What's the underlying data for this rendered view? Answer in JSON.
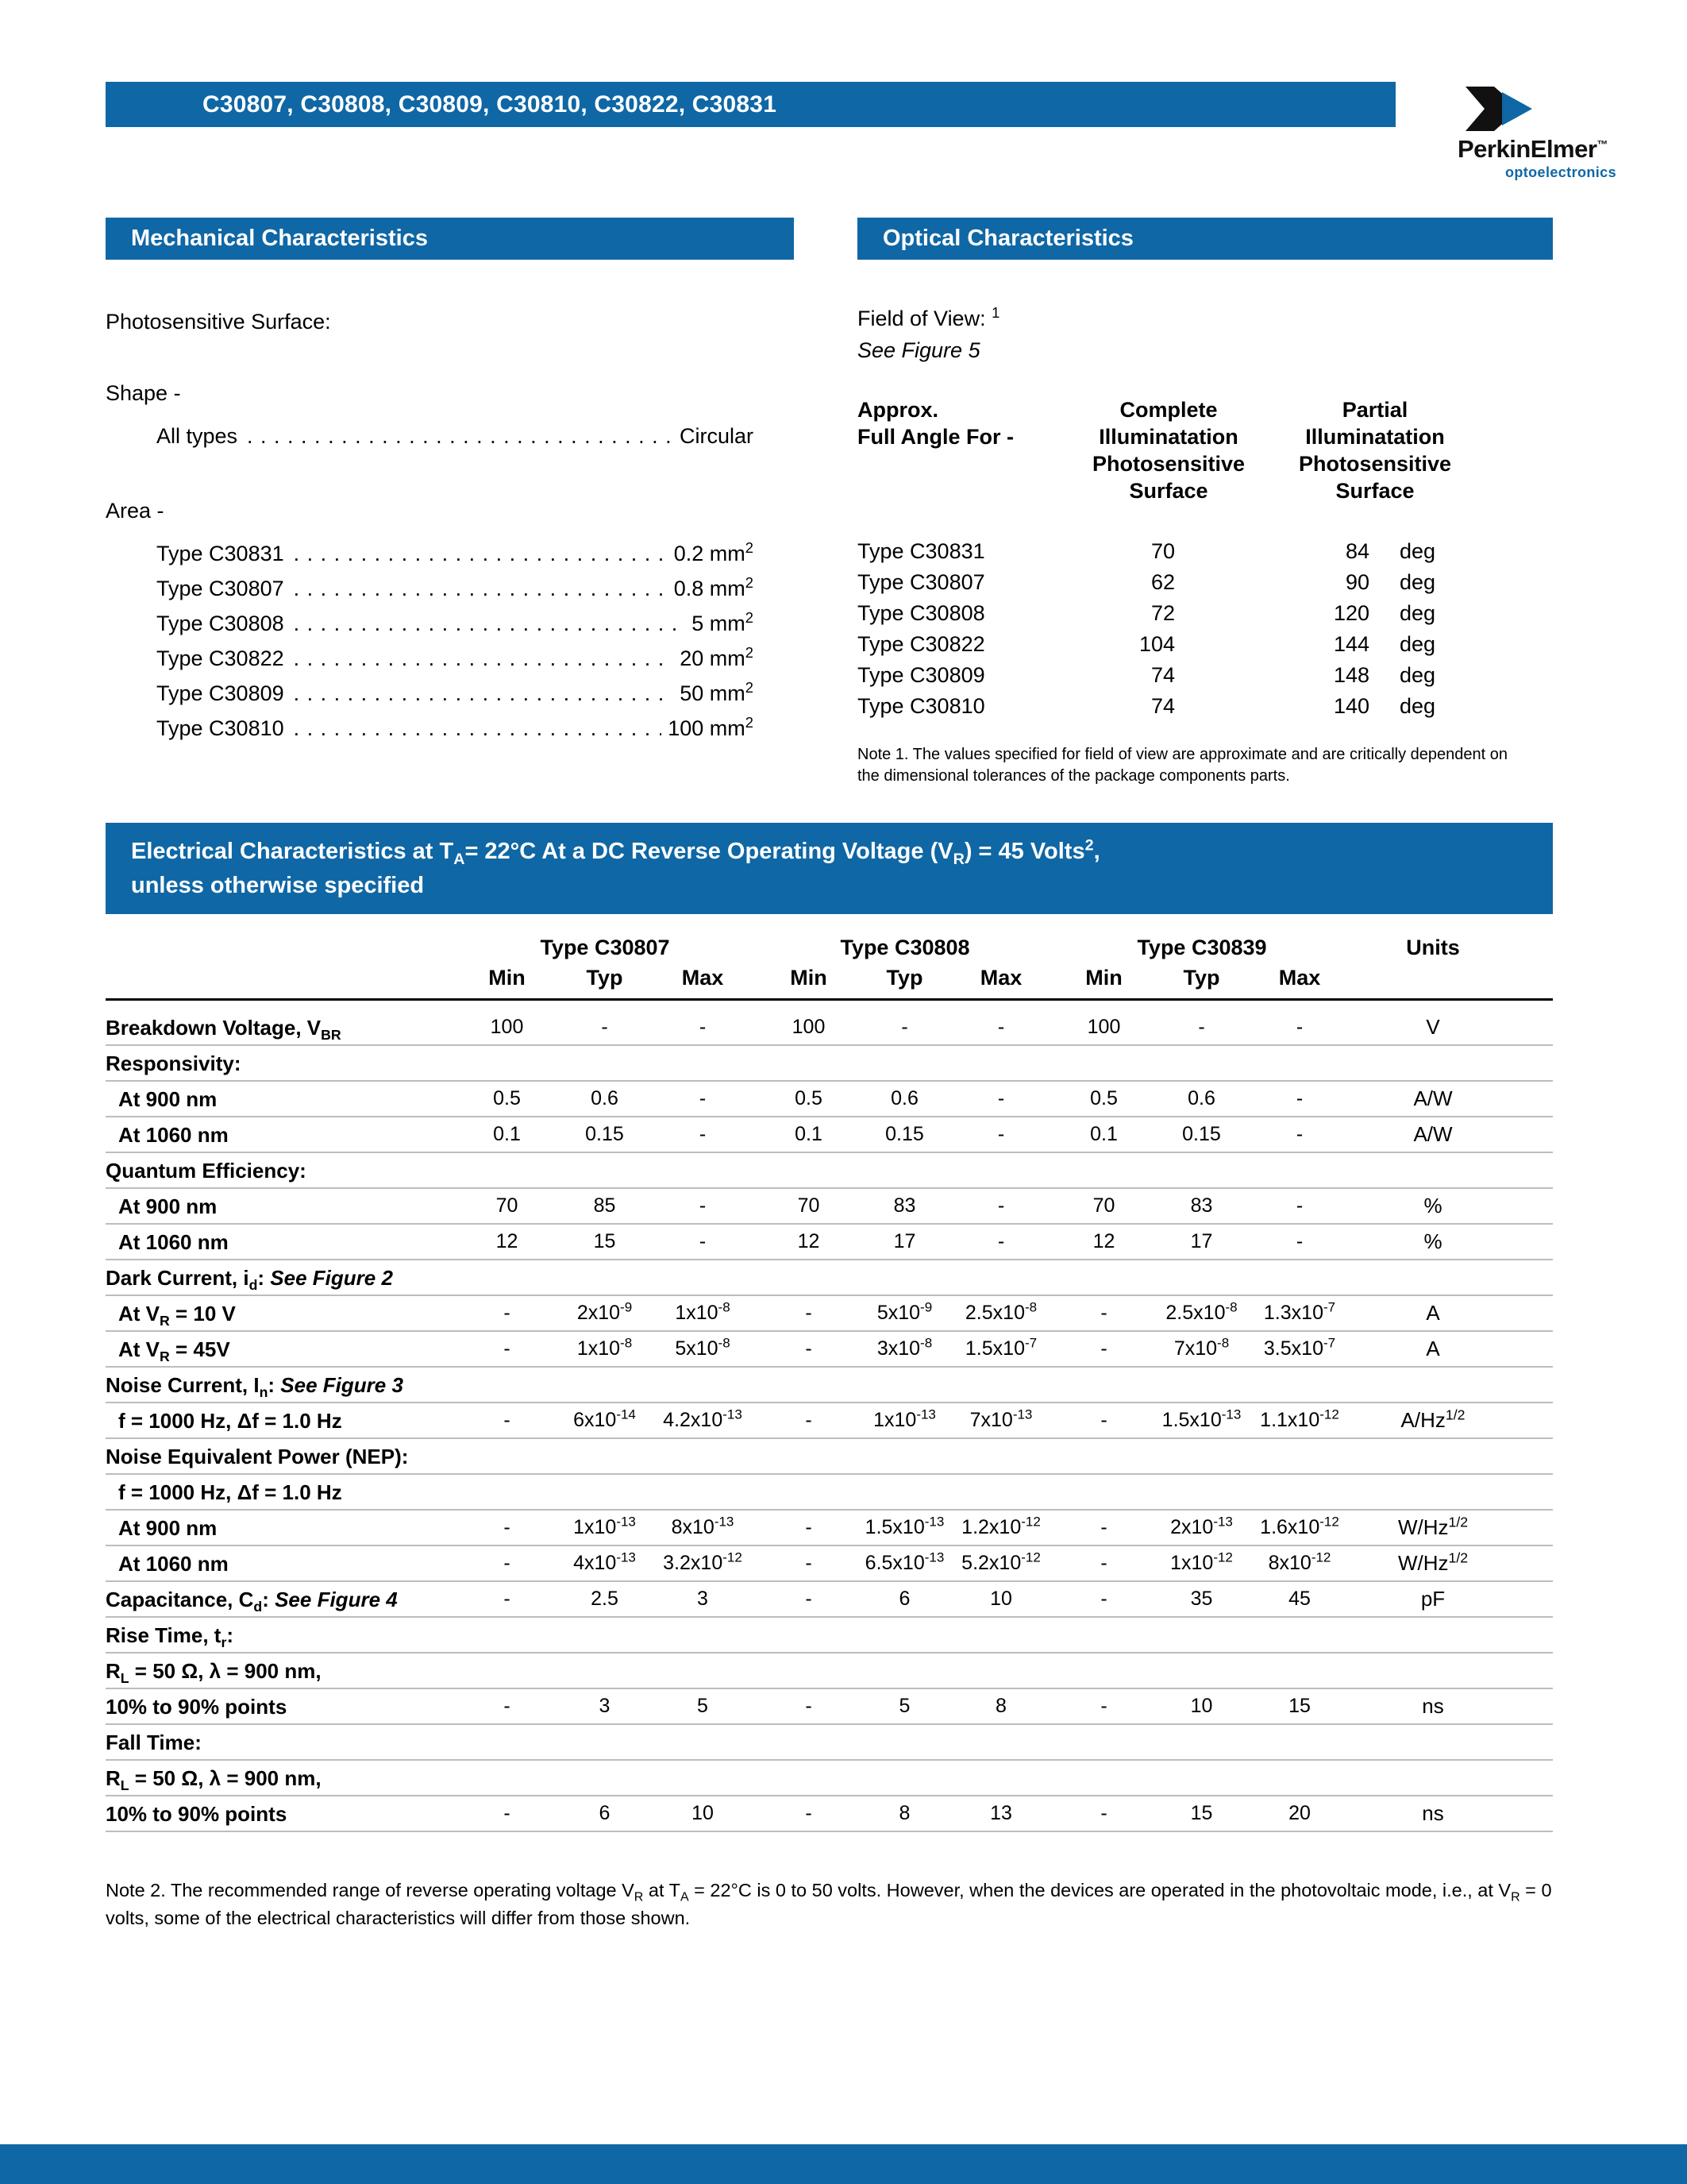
{
  "colors": {
    "brand_blue": "#0f67a5"
  },
  "page": {
    "title": "C30807, C30808, C30809, C30810, C30822, C30831",
    "logo": {
      "brand": "PerkinElmer",
      "tm": "™",
      "tagline": "optoelectronics"
    }
  },
  "mechanical": {
    "header": "Mechanical Characteristics",
    "surface_label": "Photosensitive Surface:",
    "shape_label": "Shape -",
    "shape_rows": [
      {
        "label": "All types",
        "value": "Circular"
      }
    ],
    "area_label": "Area -",
    "area_rows": [
      {
        "label": "Type C30831",
        "value": "0.2 mm<sup>2</sup>"
      },
      {
        "label": "Type C30807",
        "value": "0.8 mm<sup>2</sup>"
      },
      {
        "label": "Type C30808",
        "value": "5 mm<sup>2</sup>"
      },
      {
        "label": "Type C30822",
        "value": "20 mm<sup>2</sup>"
      },
      {
        "label": "Type C30809",
        "value": "50 mm<sup>2</sup>"
      },
      {
        "label": "Type C30810",
        "value": "100 mm<sup>2</sup>"
      }
    ],
    "leader": ". . . . . . . . . . . . . . . . . . . . . . . . . . . . . . . . . . . . . . . . . . . . . . . . . . . . . . . ."
  },
  "optical": {
    "header": "Optical Characteristics",
    "fov_label": "Field of View: <sup>1</sup>",
    "see_figure": "See Figure 5",
    "col0_header": "Approx.<br>Full Angle For -",
    "col1_header": "Complete<br>Illuminatation<br>Photosensitive<br>Surface",
    "col2_header": "Partial<br>Illuminatation<br>Photosensitive<br>Surface",
    "rows": [
      {
        "type": "Type C30831",
        "complete": "70",
        "partial": "84",
        "unit": "deg"
      },
      {
        "type": "Type C30807",
        "complete": "62",
        "partial": "90",
        "unit": "deg"
      },
      {
        "type": "Type C30808",
        "complete": "72",
        "partial": "120",
        "unit": "deg"
      },
      {
        "type": "Type C30822",
        "complete": "104",
        "partial": "144",
        "unit": "deg"
      },
      {
        "type": "Type C30809",
        "complete": "74",
        "partial": "148",
        "unit": "deg"
      },
      {
        "type": "Type C30810",
        "complete": "74",
        "partial": "140",
        "unit": "deg"
      }
    ],
    "note": "Note 1. The values specified for field of view are approximate and are critically dependent on the dimensional tolerances of the package components parts."
  },
  "electrical": {
    "header_line1": "Electrical Characteristics at T<sub>A</sub>= 22°C At a DC Reverse Operating Voltage (V<sub>R</sub>) = 45 Volts<sup>2</sup>,",
    "header_line2": "unless otherwise specified",
    "col_groups": [
      "Type C30807",
      "Type C30808",
      "Type C30839"
    ],
    "sub_headers": [
      "Min",
      "Typ",
      "Max"
    ],
    "units_header": "Units",
    "rows": [
      {
        "label": "Breakdown Voltage, V<sub>BR</sub>",
        "indent": false,
        "values": [
          "100",
          "-",
          "-",
          "100",
          "-",
          "-",
          "100",
          "-",
          "-"
        ],
        "unit": "V"
      },
      {
        "label": "Responsivity:",
        "indent": false,
        "values": [],
        "unit": ""
      },
      {
        "label": "At 900 nm",
        "indent": true,
        "values": [
          "0.5",
          "0.6",
          "-",
          "0.5",
          "0.6",
          "-",
          "0.5",
          "0.6",
          "-"
        ],
        "unit": "A/W"
      },
      {
        "label": "At 1060 nm",
        "indent": true,
        "values": [
          "0.1",
          "0.15",
          "-",
          "0.1",
          "0.15",
          "-",
          "0.1",
          "0.15",
          "-"
        ],
        "unit": "A/W"
      },
      {
        "label": "Quantum Efficiency:",
        "indent": false,
        "values": [],
        "unit": ""
      },
      {
        "label": "At 900 nm",
        "indent": true,
        "values": [
          "70",
          "85",
          "-",
          "70",
          "83",
          "-",
          "70",
          "83",
          "-"
        ],
        "unit": "%"
      },
      {
        "label": "At 1060 nm",
        "indent": true,
        "values": [
          "12",
          "15",
          "-",
          "12",
          "17",
          "-",
          "12",
          "17",
          "-"
        ],
        "unit": "%"
      },
      {
        "label": "Dark Current, i<sub>d</sub>: <i>See Figure 2</i>",
        "indent": false,
        "values": [],
        "unit": ""
      },
      {
        "label": "At V<sub>R</sub> = 10 V",
        "indent": true,
        "values": [
          "-",
          "2x10<sup>-9</sup>",
          "1x10<sup>-8</sup>",
          "-",
          "5x10<sup>-9</sup>",
          "2.5x10<sup>-8</sup>",
          "-",
          "2.5x10<sup>-8</sup>",
          "1.3x10<sup>-7</sup>"
        ],
        "unit": "A"
      },
      {
        "label": "At V<sub>R</sub> = 45V",
        "indent": true,
        "values": [
          "-",
          "1x10<sup>-8</sup>",
          "5x10<sup>-8</sup>",
          "-",
          "3x10<sup>-8</sup>",
          "1.5x10<sup>-7</sup>",
          "-",
          "7x10<sup>-8</sup>",
          "3.5x10<sup>-7</sup>"
        ],
        "unit": "A"
      },
      {
        "label": "Noise Current, I<sub>n</sub>: <i>See Figure 3</i>",
        "indent": false,
        "values": [],
        "unit": ""
      },
      {
        "label": "f = 1000 Hz,  Δf = 1.0 Hz",
        "indent": true,
        "values": [
          "-",
          "6x10<sup>-14</sup>",
          "4.2x10<sup>-13</sup>",
          "-",
          "1x10<sup>-13</sup>",
          "7x10<sup>-13</sup>",
          "-",
          "1.5x10<sup>-13</sup>",
          "1.1x10<sup>-12</sup>"
        ],
        "unit": "A/Hz<sup>1/2</sup>"
      },
      {
        "label": "Noise Equivalent Power (NEP):",
        "indent": false,
        "values": [],
        "unit": ""
      },
      {
        "label": "f = 1000 Hz, Δf = 1.0 Hz",
        "indent": true,
        "values": [],
        "unit": ""
      },
      {
        "label": "At 900 nm",
        "indent": true,
        "values": [
          "-",
          "1x10<sup>-13</sup>",
          "8x10<sup>-13</sup>",
          "-",
          "1.5x10<sup>-13</sup>",
          "1.2x10<sup>-12</sup>",
          "-",
          "2x10<sup>-13</sup>",
          "1.6x10<sup>-12</sup>"
        ],
        "unit": "W/Hz<sup>1/2</sup>"
      },
      {
        "label": "At 1060 nm",
        "indent": true,
        "values": [
          "-",
          "4x10<sup>-13</sup>",
          "3.2x10<sup>-12</sup>",
          "-",
          "6.5x10<sup>-13</sup>",
          "5.2x10<sup>-12</sup>",
          "-",
          "1x10<sup>-12</sup>",
          "8x10<sup>-12</sup>"
        ],
        "unit": "W/Hz<sup>1/2</sup>"
      },
      {
        "label": "Capacitance, C<sub>d</sub>: <i>See Figure 4</i>",
        "indent": false,
        "values": [
          "-",
          "2.5",
          "3",
          "-",
          "6",
          "10",
          "-",
          "35",
          "45"
        ],
        "unit": "pF"
      },
      {
        "label": "Rise Time, t<sub>r</sub>:",
        "indent": false,
        "values": [],
        "unit": ""
      },
      {
        "label": "R<sub>L</sub> = 50 Ω, λ = 900 nm,",
        "indent": false,
        "values": [],
        "unit": ""
      },
      {
        "label": "10% to 90% points",
        "indent": false,
        "values": [
          "-",
          "3",
          "5",
          "-",
          "5",
          "8",
          "-",
          "10",
          "15"
        ],
        "unit": "ns"
      },
      {
        "label": "Fall Time:",
        "indent": false,
        "values": [],
        "unit": ""
      },
      {
        "label": "R<sub>L</sub> = 50 Ω, λ = 900 nm,",
        "indent": false,
        "values": [],
        "unit": ""
      },
      {
        "label": "10% to 90% points",
        "indent": false,
        "values": [
          "-",
          "6",
          "10",
          "-",
          "8",
          "13",
          "-",
          "15",
          "20"
        ],
        "unit": "ns"
      }
    ],
    "note2": "Note 2. The recommended range of reverse operating voltage V<sub>R</sub> at T<sub>A</sub> = 22°C is 0 to 50 volts. However, when the devices are operated in the photovoltaic mode, i.e., at V<sub>R</sub> = 0 volts, some of the electrical characteristics will differ from those shown."
  }
}
